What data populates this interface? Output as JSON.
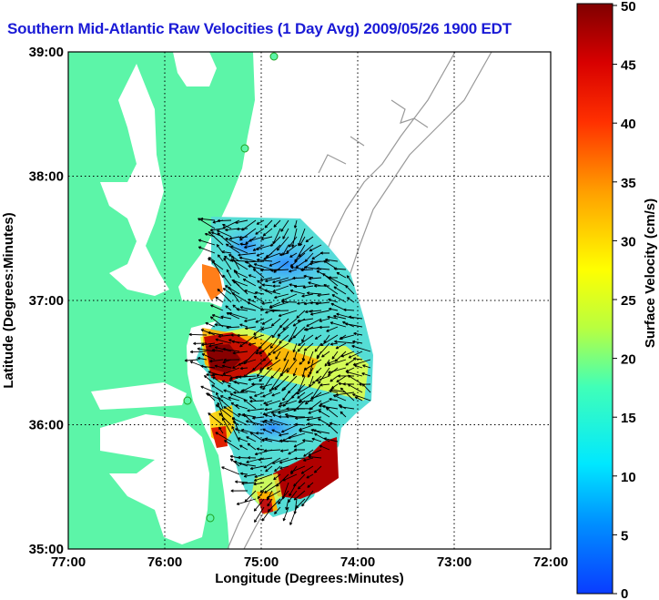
{
  "title": "Southern Mid-Atlantic Raw Velocities (1 Day Avg) 2009/05/26 1900 EDT",
  "map": {
    "xlabel": "Longitude (Degrees:Minutes)",
    "ylabel": "Latitude (Degrees:Minutes)",
    "lon_range": [
      -77,
      -72
    ],
    "lat_range": [
      35,
      39
    ],
    "x_ticks": [
      "77:00",
      "76:00",
      "75:00",
      "74:00",
      "73:00",
      "72:00"
    ],
    "y_ticks": [
      "39:00",
      "38:00",
      "37:00",
      "36:00",
      "35:00"
    ],
    "grid": true,
    "land_color": "#5cf5a8",
    "water_color": "#ffffff"
  },
  "colorbar": {
    "label": "Surface Velocity (cm/s)",
    "range": [
      0,
      50
    ],
    "ticks": [
      "50",
      "45",
      "40",
      "35",
      "30",
      "25",
      "20",
      "15",
      "10",
      "5",
      "0"
    ]
  }
}
